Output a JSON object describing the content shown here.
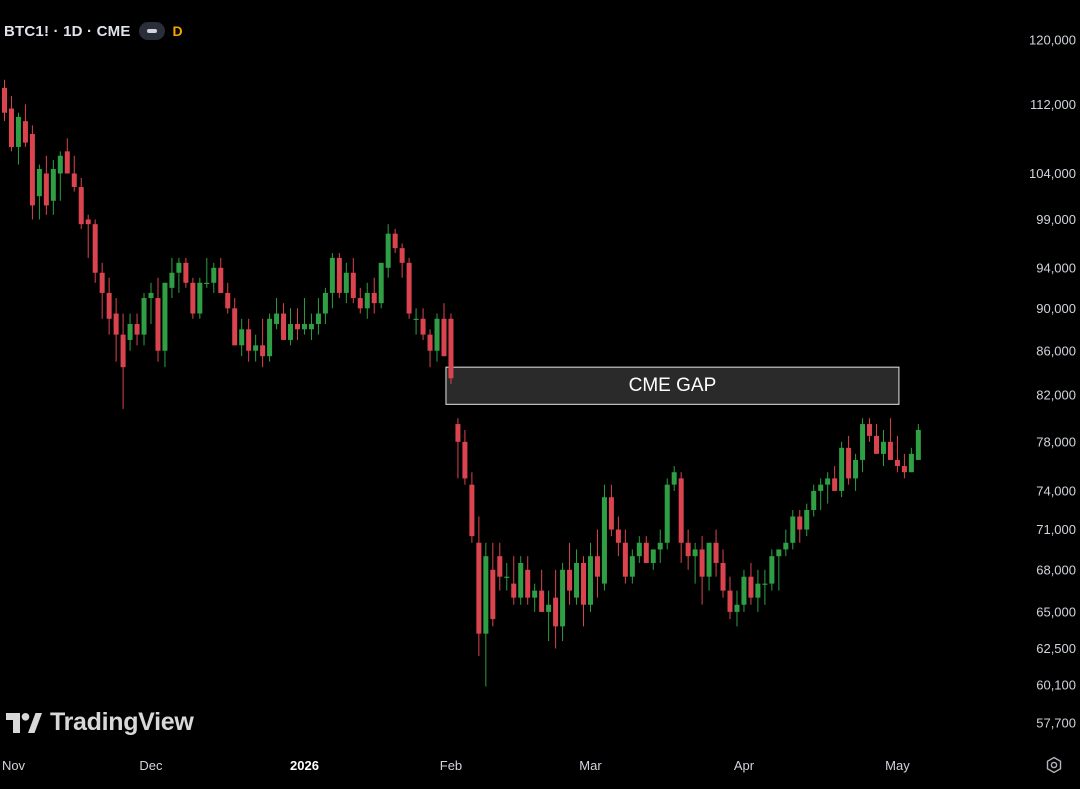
{
  "header": {
    "symbol": "BTC1! · 1D · CME",
    "flag": "D"
  },
  "branding": {
    "logo_text": "TradingView"
  },
  "colors": {
    "up": "#2f9e44",
    "down": "#d9444f",
    "background": "#000000",
    "gap_fill": "#2a2a2a"
  },
  "chart_data": {
    "type": "candlestick",
    "title": "",
    "y_axis": {
      "scale": "log",
      "ticks": [
        57700,
        60100,
        62500,
        65000,
        68000,
        71000,
        74000,
        78000,
        82000,
        86000,
        90000,
        94000,
        99000,
        104000,
        112000,
        120000
      ],
      "tick_labels": [
        "57,700",
        "60,100",
        "62,500",
        "65,000",
        "68,000",
        "71,000",
        "74,000",
        "78,000",
        "82,000",
        "86,000",
        "90,000",
        "94,000",
        "99,000",
        "104,000",
        "112,000",
        "120,000"
      ]
    },
    "x_axis": {
      "labels": [
        {
          "text": "Nov",
          "index": 0,
          "bold": false
        },
        {
          "text": "Dec",
          "index": 21,
          "bold": false
        },
        {
          "text": "2026",
          "index": 43,
          "bold": true
        },
        {
          "text": "Feb",
          "index": 64,
          "bold": false
        },
        {
          "text": "Mar",
          "index": 84,
          "bold": false
        },
        {
          "text": "Apr",
          "index": 106,
          "bold": false
        },
        {
          "text": "May",
          "index": 128,
          "bold": false
        }
      ]
    },
    "annotation": {
      "label": "CME GAP",
      "from_index": 64,
      "to_index": 128,
      "low": 81200,
      "high": 84500
    },
    "candles": [
      [
        114000,
        115000,
        110000,
        111000
      ],
      [
        111500,
        113000,
        106500,
        107000
      ],
      [
        107000,
        111000,
        105000,
        110500
      ],
      [
        110000,
        112000,
        107000,
        107500
      ],
      [
        108500,
        109500,
        99000,
        100500
      ],
      [
        101500,
        105000,
        99000,
        104500
      ],
      [
        104000,
        106000,
        99500,
        100500
      ],
      [
        101000,
        105500,
        99500,
        104500
      ],
      [
        104000,
        106500,
        101000,
        106000
      ],
      [
        106500,
        108000,
        104000,
        104000
      ],
      [
        104000,
        106000,
        102000,
        102500
      ],
      [
        102500,
        103500,
        98000,
        98500
      ],
      [
        99000,
        99500,
        95000,
        98500
      ],
      [
        98500,
        99000,
        92500,
        93500
      ],
      [
        93500,
        94500,
        89000,
        91500
      ],
      [
        91500,
        93000,
        87500,
        89000
      ],
      [
        89500,
        91000,
        85000,
        87500
      ],
      [
        87500,
        89500,
        80800,
        84500
      ],
      [
        87000,
        89500,
        86000,
        88500
      ],
      [
        88500,
        89500,
        86500,
        87500
      ],
      [
        87500,
        91500,
        86500,
        91000
      ],
      [
        91000,
        92500,
        88500,
        91500
      ],
      [
        91000,
        93000,
        85000,
        86000
      ],
      [
        86000,
        92500,
        84500,
        92500
      ],
      [
        92000,
        95000,
        91000,
        93500
      ],
      [
        93500,
        95000,
        91500,
        94500
      ],
      [
        94500,
        95000,
        92000,
        92500
      ],
      [
        92500,
        93000,
        89000,
        89500
      ],
      [
        89500,
        93000,
        89000,
        92500
      ],
      [
        92500,
        95000,
        92000,
        92500
      ],
      [
        92500,
        94500,
        91500,
        94000
      ],
      [
        94000,
        95000,
        91500,
        91500
      ],
      [
        91500,
        92500,
        89500,
        90000
      ],
      [
        90000,
        91000,
        86500,
        86500
      ],
      [
        86500,
        89000,
        85500,
        88000
      ],
      [
        88000,
        89000,
        85000,
        86000
      ],
      [
        86000,
        87500,
        85000,
        86500
      ],
      [
        86500,
        89000,
        84500,
        85500
      ],
      [
        85500,
        89500,
        85000,
        89000
      ],
      [
        88500,
        91000,
        88000,
        89500
      ],
      [
        89500,
        90500,
        87000,
        87000
      ],
      [
        87000,
        90000,
        86500,
        88500
      ],
      [
        88500,
        90000,
        87000,
        88000
      ],
      [
        88000,
        91000,
        87500,
        88500
      ],
      [
        88000,
        89500,
        87000,
        88500
      ],
      [
        88500,
        91000,
        87500,
        89500
      ],
      [
        89500,
        92000,
        88500,
        91500
      ],
      [
        91500,
        95500,
        90000,
        95000
      ],
      [
        95000,
        95500,
        91000,
        91500
      ],
      [
        91500,
        94500,
        90500,
        93500
      ],
      [
        93500,
        95000,
        90500,
        91000
      ],
      [
        91000,
        92000,
        89500,
        90000
      ],
      [
        90000,
        92500,
        89000,
        91500
      ],
      [
        91500,
        93000,
        89500,
        90500
      ],
      [
        90500,
        94500,
        90000,
        94500
      ],
      [
        94000,
        98500,
        93000,
        97500
      ],
      [
        97500,
        98000,
        95500,
        96000
      ],
      [
        96000,
        96500,
        93000,
        94500
      ],
      [
        94500,
        95000,
        89000,
        89500
      ],
      [
        89000,
        90000,
        87500,
        89000
      ],
      [
        89000,
        90000,
        87000,
        87500
      ],
      [
        87500,
        88000,
        84500,
        86000
      ],
      [
        86000,
        89500,
        85000,
        89000
      ],
      [
        89000,
        90500,
        85500,
        85500
      ],
      [
        89000,
        89500,
        83000,
        83500
      ],
      [
        79500,
        80000,
        75000,
        78000
      ],
      [
        78000,
        79000,
        74500,
        75000
      ],
      [
        74500,
        75500,
        70000,
        70500
      ],
      [
        70000,
        72000,
        62000,
        63500
      ],
      [
        63500,
        70000,
        60000,
        69000
      ],
      [
        68000,
        70000,
        64000,
        64500
      ],
      [
        69000,
        70000,
        66500,
        67500
      ],
      [
        67500,
        68500,
        66500,
        67500
      ],
      [
        67000,
        69000,
        65500,
        66000
      ],
      [
        66000,
        69000,
        65500,
        68500
      ],
      [
        68000,
        69000,
        65500,
        66000
      ],
      [
        66000,
        67000,
        65000,
        66500
      ],
      [
        66500,
        68000,
        65000,
        65000
      ],
      [
        65000,
        66500,
        63000,
        65500
      ],
      [
        66000,
        68000,
        62500,
        64000
      ],
      [
        64000,
        68500,
        63000,
        68000
      ],
      [
        68000,
        70000,
        65500,
        66500
      ],
      [
        66000,
        69500,
        65500,
        68500
      ],
      [
        68500,
        69000,
        64000,
        65500
      ],
      [
        65500,
        70000,
        65000,
        69000
      ],
      [
        69000,
        71000,
        66000,
        67500
      ],
      [
        67000,
        74500,
        66500,
        73500
      ],
      [
        73500,
        74500,
        70500,
        71000
      ],
      [
        71000,
        72000,
        69000,
        70000
      ],
      [
        70000,
        71000,
        67000,
        67500
      ],
      [
        67500,
        69500,
        67000,
        69000
      ],
      [
        69000,
        70500,
        68500,
        70000
      ],
      [
        70000,
        70500,
        68500,
        68500
      ],
      [
        68500,
        69500,
        68000,
        69500
      ],
      [
        69500,
        71000,
        68500,
        70000
      ],
      [
        70000,
        75000,
        69500,
        74500
      ],
      [
        74500,
        76000,
        74000,
        75500
      ],
      [
        75000,
        75500,
        68500,
        70000
      ],
      [
        70000,
        71000,
        68000,
        69000
      ],
      [
        69000,
        70000,
        67000,
        69500
      ],
      [
        69500,
        70500,
        65500,
        67500
      ],
      [
        67500,
        70000,
        66500,
        70000
      ],
      [
        70000,
        71000,
        67500,
        68500
      ],
      [
        68500,
        69500,
        66000,
        66500
      ],
      [
        66500,
        67500,
        64500,
        65000
      ],
      [
        65000,
        66500,
        64000,
        65500
      ],
      [
        65500,
        68000,
        65000,
        67500
      ],
      [
        67500,
        68500,
        65500,
        66000
      ],
      [
        66000,
        68000,
        65000,
        67000
      ],
      [
        67000,
        68000,
        65500,
        67000
      ],
      [
        67000,
        69500,
        66500,
        69000
      ],
      [
        69000,
        69500,
        66500,
        69500
      ],
      [
        69500,
        71000,
        69000,
        70000
      ],
      [
        70000,
        72500,
        69500,
        72000
      ],
      [
        72000,
        72500,
        70000,
        71000
      ],
      [
        71000,
        73000,
        70500,
        72500
      ],
      [
        72500,
        74500,
        72000,
        74000
      ],
      [
        74000,
        75000,
        72500,
        74500
      ],
      [
        74500,
        75500,
        73000,
        75000
      ],
      [
        75000,
        76000,
        74000,
        74000
      ],
      [
        74000,
        78000,
        73500,
        77500
      ],
      [
        77500,
        78500,
        74500,
        75000
      ],
      [
        75000,
        77000,
        74000,
        76500
      ],
      [
        76500,
        80000,
        75500,
        79500
      ],
      [
        79500,
        80000,
        78000,
        78500
      ],
      [
        78500,
        79500,
        77000,
        77000
      ],
      [
        77000,
        79000,
        76000,
        78000
      ],
      [
        78000,
        80000,
        76500,
        76500
      ],
      [
        76500,
        78500,
        75500,
        76000
      ],
      [
        76000,
        77000,
        75000,
        75500
      ],
      [
        75500,
        77500,
        75500,
        77000
      ],
      [
        76500,
        79500,
        76500,
        79000
      ]
    ]
  }
}
